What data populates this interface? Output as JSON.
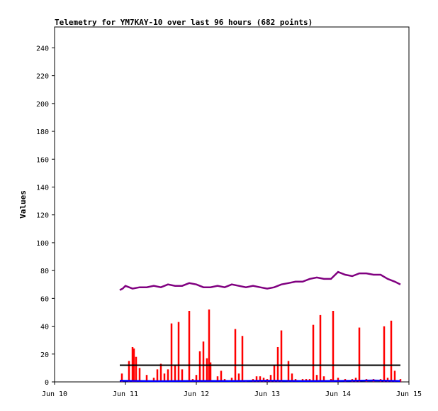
{
  "chart_data": {
    "type": "line",
    "title": "Telemetry for YM7KAY-10 over last 96 hours (682 points)",
    "xlabel": "",
    "ylabel": "Values",
    "x_tick_labels": [
      "Jun 10",
      "Jun 11",
      "Jun 12",
      "Jun 13",
      "Jun 14",
      "Jun 15"
    ],
    "xlim_days": [
      10,
      15
    ],
    "ylim": [
      0,
      255
    ],
    "y_ticks": [
      0,
      20,
      40,
      60,
      80,
      100,
      120,
      140,
      160,
      180,
      200,
      220,
      240
    ],
    "grid": false,
    "legend": "none",
    "series": [
      {
        "color": "#800080",
        "style": "line",
        "x_day": [
          10.92,
          10.96,
          11.0,
          11.1,
          11.2,
          11.3,
          11.4,
          11.5,
          11.6,
          11.7,
          11.8,
          11.9,
          12.0,
          12.1,
          12.2,
          12.3,
          12.4,
          12.5,
          12.6,
          12.7,
          12.8,
          12.9,
          13.0,
          13.1,
          13.2,
          13.3,
          13.4,
          13.5,
          13.6,
          13.7,
          13.8,
          13.9,
          14.0,
          14.1,
          14.2,
          14.3,
          14.4,
          14.5,
          14.6,
          14.7,
          14.8,
          14.88
        ],
        "y": [
          66,
          67,
          69,
          67,
          68,
          68,
          69,
          68,
          70,
          69,
          69,
          71,
          70,
          68,
          68,
          69,
          68,
          70,
          69,
          68,
          69,
          68,
          67,
          68,
          70,
          71,
          72,
          72,
          74,
          75,
          74,
          74,
          79,
          77,
          76,
          78,
          78,
          77,
          77,
          74,
          72,
          70
        ]
      },
      {
        "color": "#ff0000",
        "style": "spikes",
        "x_day": [
          10.95,
          11.05,
          11.1,
          11.12,
          11.15,
          11.2,
          11.3,
          11.4,
          11.45,
          11.5,
          11.55,
          11.6,
          11.65,
          11.7,
          11.75,
          11.8,
          11.9,
          11.95,
          12.0,
          12.05,
          12.1,
          12.15,
          12.18,
          12.2,
          12.3,
          12.35,
          12.4,
          12.5,
          12.55,
          12.6,
          12.65,
          12.7,
          12.8,
          12.85,
          12.9,
          12.95,
          13.0,
          13.05,
          13.1,
          13.15,
          13.2,
          13.3,
          13.35,
          13.4,
          13.5,
          13.55,
          13.6,
          13.65,
          13.7,
          13.75,
          13.8,
          13.9,
          13.93,
          14.0,
          14.1,
          14.2,
          14.25,
          14.3,
          14.4,
          14.5,
          14.6,
          14.65,
          14.7,
          14.75,
          14.8,
          14.88
        ],
        "y": [
          6,
          15,
          25,
          24,
          18,
          10,
          5,
          3,
          9,
          13,
          6,
          9,
          42,
          12,
          43,
          9,
          51,
          2,
          5,
          22,
          29,
          17,
          52,
          14,
          4,
          8,
          2,
          3,
          38,
          6,
          33,
          1,
          2,
          4,
          4,
          3,
          2,
          5,
          12,
          25,
          37,
          15,
          6,
          2,
          2,
          2,
          2,
          41,
          5,
          48,
          4,
          2,
          51,
          3,
          2,
          2,
          3,
          39,
          2,
          2,
          2,
          40,
          3,
          44,
          8,
          2
        ]
      },
      {
        "color": "#000000",
        "style": "line",
        "x_day": [
          10.92,
          14.88
        ],
        "y": [
          12,
          12
        ]
      },
      {
        "color": "#0000ff",
        "style": "line",
        "x_day": [
          10.92,
          11.5,
          12.0,
          12.5,
          13.0,
          13.5,
          14.0,
          14.5,
          14.88
        ],
        "y": [
          0.8,
          0.5,
          0.7,
          0.6,
          0.8,
          0.6,
          0.7,
          1.0,
          0.6
        ]
      }
    ]
  }
}
